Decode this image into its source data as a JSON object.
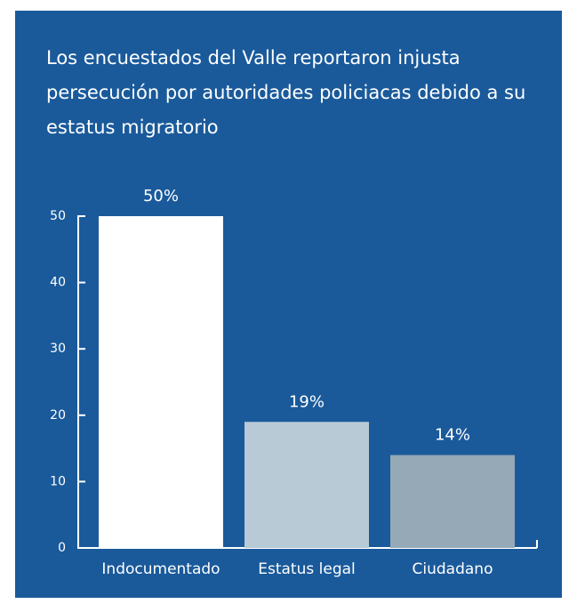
{
  "chart_data": {
    "type": "bar",
    "title": "Los encuestados del Valle reportaron injusta persecución por autoridades policiacas debido a su estatus migratorio",
    "categories": [
      "Indocumentado",
      "Estatus legal",
      "Ciudadano"
    ],
    "values": [
      50,
      19,
      14
    ],
    "value_labels": [
      "50%",
      "19%",
      "14%"
    ],
    "colors": [
      "#ffffff",
      "#b8cad6",
      "#95a9b6"
    ],
    "ylim": [
      0,
      50
    ],
    "yticks": [
      0,
      10,
      20,
      30,
      40,
      50
    ],
    "grid": false
  }
}
